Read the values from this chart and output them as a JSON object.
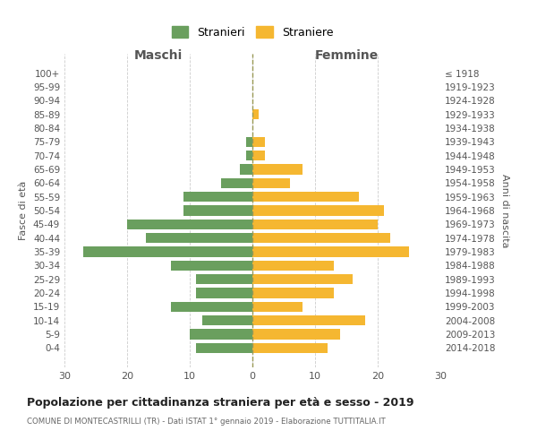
{
  "age_groups": [
    "100+",
    "95-99",
    "90-94",
    "85-89",
    "80-84",
    "75-79",
    "70-74",
    "65-69",
    "60-64",
    "55-59",
    "50-54",
    "45-49",
    "40-44",
    "35-39",
    "30-34",
    "25-29",
    "20-24",
    "15-19",
    "10-14",
    "5-9",
    "0-4"
  ],
  "birth_years": [
    "≤ 1918",
    "1919-1923",
    "1924-1928",
    "1929-1933",
    "1934-1938",
    "1939-1943",
    "1944-1948",
    "1949-1953",
    "1954-1958",
    "1959-1963",
    "1964-1968",
    "1969-1973",
    "1974-1978",
    "1979-1983",
    "1984-1988",
    "1989-1993",
    "1994-1998",
    "1999-2003",
    "2004-2008",
    "2009-2013",
    "2014-2018"
  ],
  "males": [
    0,
    0,
    0,
    0,
    0,
    1,
    1,
    2,
    5,
    11,
    11,
    20,
    17,
    27,
    13,
    9,
    9,
    13,
    8,
    10,
    9
  ],
  "females": [
    0,
    0,
    0,
    1,
    0,
    2,
    2,
    8,
    6,
    17,
    21,
    20,
    22,
    25,
    13,
    16,
    13,
    8,
    18,
    14,
    12
  ],
  "male_color": "#6a9f5e",
  "female_color": "#f5b731",
  "background_color": "#ffffff",
  "grid_color": "#cccccc",
  "title": "Popolazione per cittadinanza straniera per età e sesso - 2019",
  "subtitle": "COMUNE DI MONTECASTRILLI (TR) - Dati ISTAT 1° gennaio 2019 - Elaborazione TUTTITALIA.IT",
  "xlabel_left": "Maschi",
  "xlabel_right": "Femmine",
  "ylabel_left": "Fasce di età",
  "ylabel_right": "Anni di nascita",
  "xlim": 30,
  "legend_labels": [
    "Stranieri",
    "Straniere"
  ]
}
